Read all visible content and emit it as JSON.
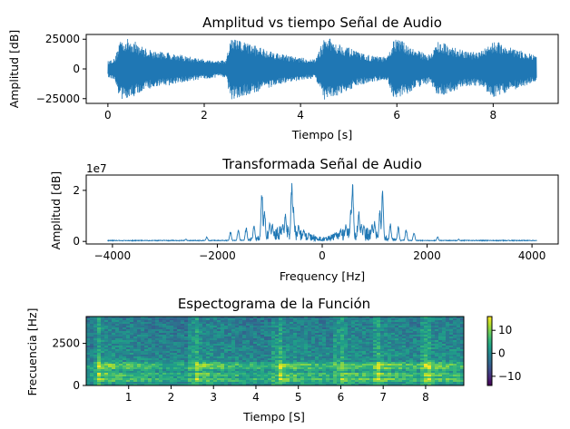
{
  "chart_data": [
    {
      "type": "line",
      "title": "Amplitud vs tiempo Señal de Audio",
      "xlabel": "Tiempo [s]",
      "ylabel": "Amplitud [dB]",
      "xlim": [
        -0.45,
        9.35
      ],
      "ylim": [
        -29000,
        29000
      ],
      "xticks": [
        0,
        2,
        4,
        6,
        8
      ],
      "yticks": [
        -25000,
        0,
        25000
      ],
      "series": [
        {
          "color": "#1f77b4",
          "envelope": {
            "x": [
              0.0,
              0.15,
              0.25,
              0.5,
              0.75,
              1.0,
              1.3,
              1.6,
              1.9,
              2.2,
              2.45,
              2.55,
              2.6,
              2.9,
              3.2,
              3.5,
              3.8,
              4.1,
              4.3,
              4.5,
              4.6,
              4.9,
              5.2,
              5.5,
              5.8,
              5.95,
              6.2,
              6.4,
              6.7,
              6.85,
              7.1,
              7.4,
              7.7,
              8.0,
              8.3,
              8.6,
              8.9
            ],
            "amp": [
              7000,
              9000,
              26000,
              25000,
              18000,
              15000,
              14000,
              11000,
              9000,
              7500,
              7000,
              26000,
              26000,
              22000,
              18000,
              14000,
              11000,
              9000,
              8000,
              26000,
              26000,
              20000,
              14000,
              11000,
              10000,
              26000,
              22000,
              16000,
              12000,
              24000,
              20000,
              15000,
              14000,
              24000,
              20000,
              15000,
              11000
            ]
          }
        }
      ]
    },
    {
      "type": "line",
      "title": "Transformada Señal de Audio",
      "xlabel": "Frequency [Hz]",
      "ylabel": "Amplitud [dB]",
      "offset_label": "1e7",
      "xlim": [
        -4500,
        4500
      ],
      "ylim": [
        -0.1,
        2.6
      ],
      "xticks": [
        -4000,
        -2000,
        0,
        2000,
        4000
      ],
      "yticks": [
        0,
        2
      ],
      "series": [
        {
          "color": "#1f77b4",
          "peaks": {
            "freq": [
              -2600,
              -2200,
              -1750,
              -1600,
              -1450,
              -1300,
              -1150,
              -1100,
              -1000,
              -950,
              -750,
              -700,
              -580,
              -550,
              -450,
              -350,
              -250,
              250,
              350,
              450,
              550,
              580,
              700,
              750,
              950,
              1000,
              1100,
              1150,
              1300,
              1450,
              1600,
              1750,
              2200,
              2600
            ],
            "value": [
              0.1,
              0.2,
              0.4,
              0.5,
              0.6,
              0.7,
              2.0,
              1.3,
              0.8,
              0.7,
              0.7,
              1.2,
              2.4,
              1.4,
              0.7,
              0.5,
              0.35,
              0.35,
              0.5,
              0.7,
              1.4,
              2.4,
              1.2,
              0.7,
              0.7,
              0.8,
              1.3,
              2.0,
              0.7,
              0.6,
              0.5,
              0.4,
              0.2,
              0.1
            ]
          }
        }
      ]
    },
    {
      "type": "heatmap",
      "title": "Espectograma de la Función",
      "xlabel": "Tiempo [S]",
      "ylabel": "Frecuencia [Hz]",
      "xlim": [
        0,
        8.9
      ],
      "ylim": [
        0,
        4096
      ],
      "xticks": [
        1,
        2,
        3,
        4,
        5,
        6,
        7,
        8
      ],
      "yticks": [
        0,
        2500
      ],
      "colormap": "viridis",
      "colorbar": {
        "range": [
          -14,
          16
        ],
        "ticks": [
          -10,
          0,
          10
        ]
      },
      "bright_bands_hz": [
        350,
        650,
        1050,
        1250
      ],
      "onsets_s": [
        0.25,
        2.55,
        4.5,
        5.95,
        6.85,
        8.0
      ]
    }
  ]
}
